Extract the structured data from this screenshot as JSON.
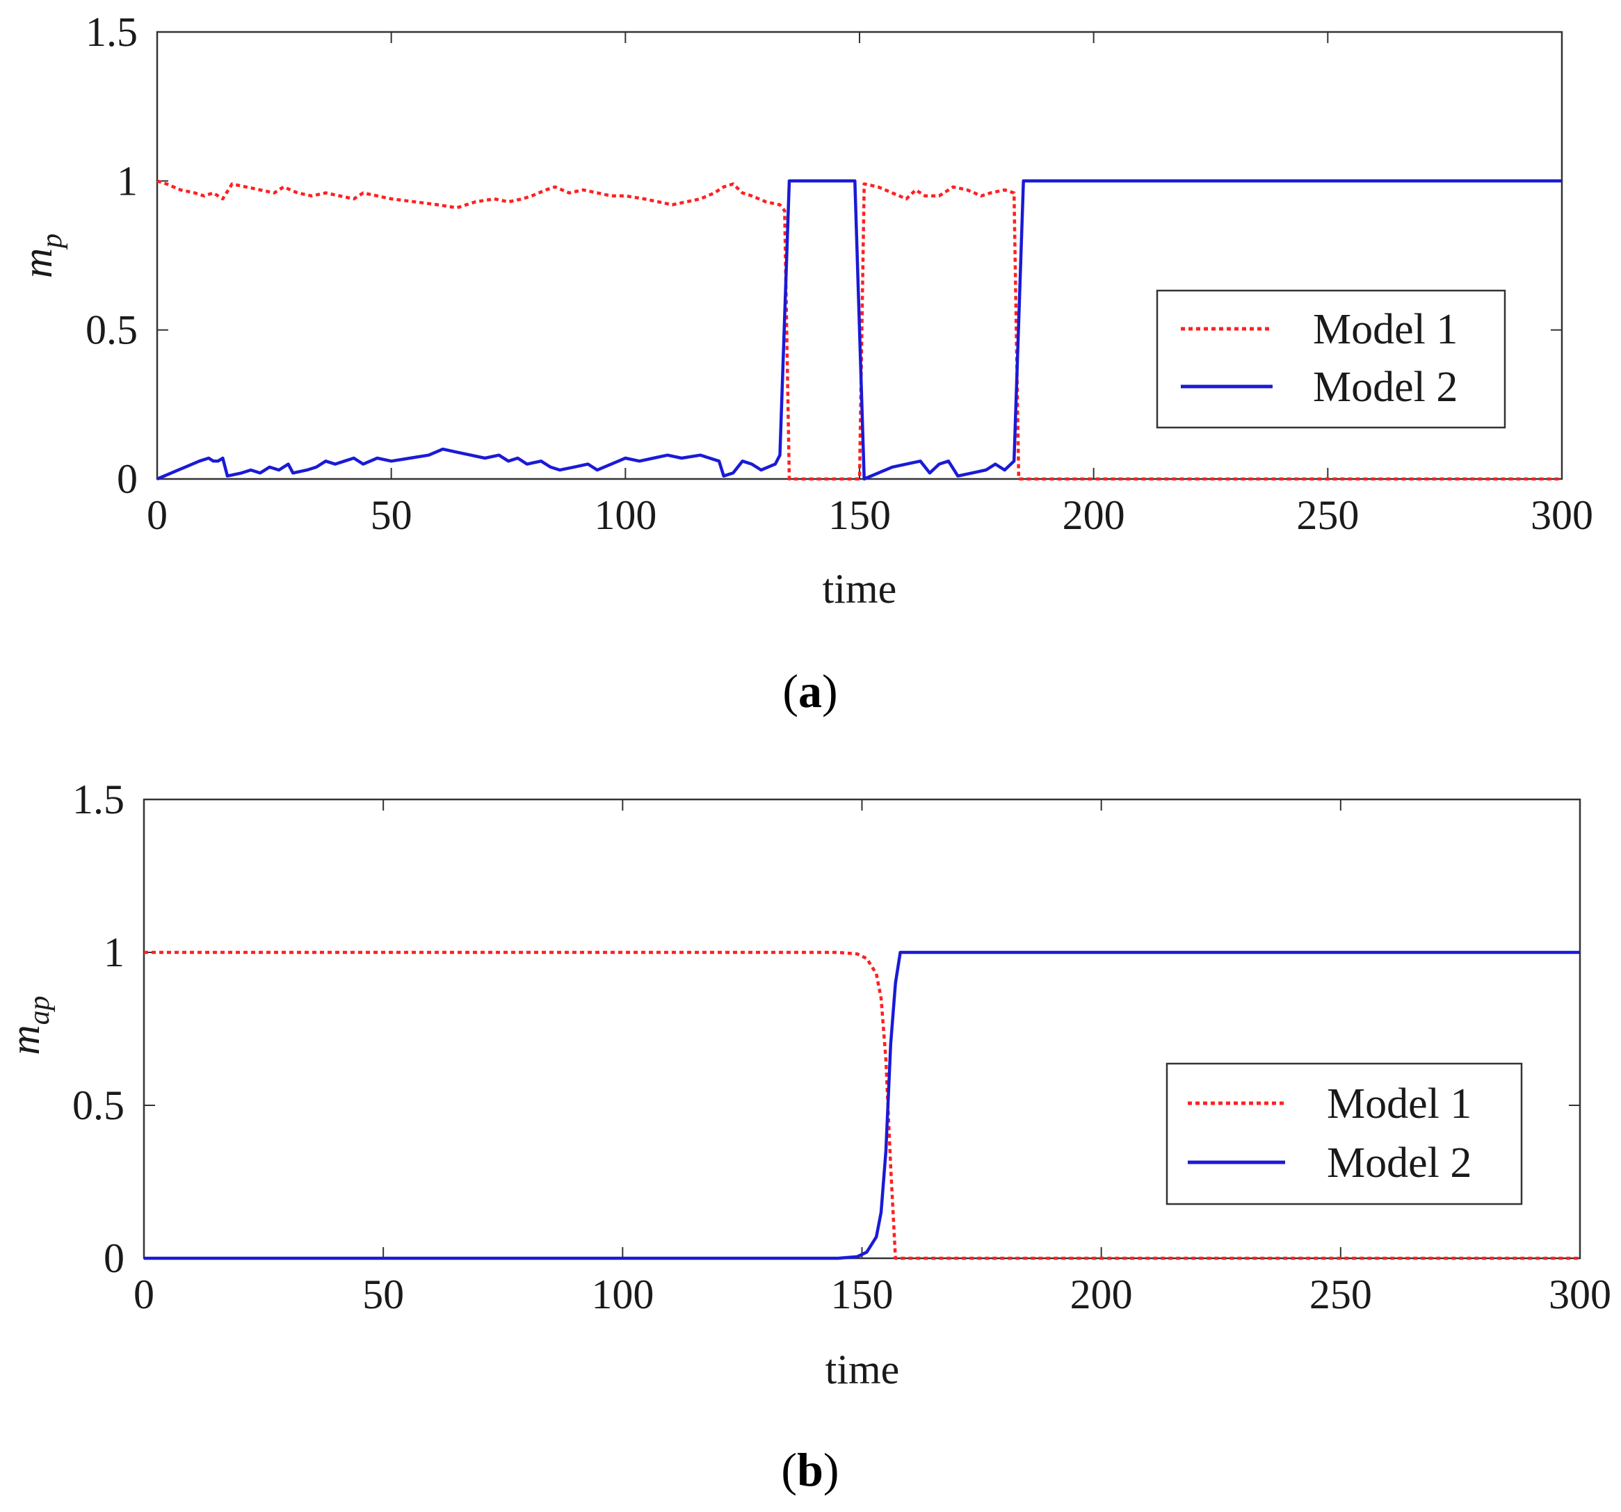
{
  "chart_data": [
    {
      "type": "line",
      "caption_letter": "a",
      "xlabel": "time",
      "ylabel_main": "m",
      "ylabel_sub": "p",
      "xlim": [
        0,
        300
      ],
      "ylim": [
        0,
        1.5
      ],
      "xticks": [
        "0",
        "50",
        "100",
        "150",
        "200",
        "250",
        "300"
      ],
      "yticks": [
        "0",
        "0.5",
        "1",
        "1.5"
      ],
      "legend_position": "center-right",
      "series": [
        {
          "name": "Model 1",
          "color": "#ff2020",
          "style": "dotted",
          "points": [
            [
              0,
              1.0
            ],
            [
              2,
              0.99
            ],
            [
              5,
              0.97
            ],
            [
              8,
              0.96
            ],
            [
              10,
              0.95
            ],
            [
              12,
              0.96
            ],
            [
              14,
              0.94
            ],
            [
              16,
              0.99
            ],
            [
              19,
              0.98
            ],
            [
              22,
              0.97
            ],
            [
              25,
              0.96
            ],
            [
              27,
              0.98
            ],
            [
              30,
              0.96
            ],
            [
              33,
              0.95
            ],
            [
              36,
              0.96
            ],
            [
              39,
              0.95
            ],
            [
              42,
              0.94
            ],
            [
              44,
              0.96
            ],
            [
              47,
              0.95
            ],
            [
              50,
              0.94
            ],
            [
              55,
              0.93
            ],
            [
              60,
              0.92
            ],
            [
              64,
              0.91
            ],
            [
              68,
              0.93
            ],
            [
              72,
              0.94
            ],
            [
              75,
              0.93
            ],
            [
              78,
              0.94
            ],
            [
              80,
              0.95
            ],
            [
              83,
              0.97
            ],
            [
              85,
              0.98
            ],
            [
              88,
              0.96
            ],
            [
              91,
              0.97
            ],
            [
              94,
              0.96
            ],
            [
              97,
              0.95
            ],
            [
              100,
              0.95
            ],
            [
              104,
              0.94
            ],
            [
              107,
              0.93
            ],
            [
              110,
              0.92
            ],
            [
              113,
              0.93
            ],
            [
              116,
              0.94
            ],
            [
              119,
              0.96
            ],
            [
              121,
              0.98
            ],
            [
              123,
              0.99
            ],
            [
              125,
              0.96
            ],
            [
              127,
              0.95
            ],
            [
              130,
              0.93
            ],
            [
              133,
              0.92
            ],
            [
              134,
              0.9
            ],
            [
              135,
              0.0
            ],
            [
              150,
              0.0
            ],
            [
              151,
              0.99
            ],
            [
              154,
              0.98
            ],
            [
              157,
              0.96
            ],
            [
              160,
              0.94
            ],
            [
              162,
              0.97
            ],
            [
              164,
              0.95
            ],
            [
              167,
              0.95
            ],
            [
              170,
              0.98
            ],
            [
              173,
              0.97
            ],
            [
              176,
              0.95
            ],
            [
              178,
              0.96
            ],
            [
              181,
              0.97
            ],
            [
              183,
              0.96
            ],
            [
              184,
              0.0
            ],
            [
              300,
              0.0
            ]
          ]
        },
        {
          "name": "Model 2",
          "color": "#1a1ad6",
          "style": "solid",
          "points": [
            [
              0,
              0.0
            ],
            [
              3,
              0.02
            ],
            [
              6,
              0.04
            ],
            [
              9,
              0.06
            ],
            [
              11,
              0.07
            ],
            [
              12,
              0.06
            ],
            [
              13,
              0.06
            ],
            [
              14,
              0.07
            ],
            [
              15,
              0.01
            ],
            [
              18,
              0.02
            ],
            [
              20,
              0.03
            ],
            [
              22,
              0.02
            ],
            [
              24,
              0.04
            ],
            [
              26,
              0.03
            ],
            [
              28,
              0.05
            ],
            [
              29,
              0.02
            ],
            [
              32,
              0.03
            ],
            [
              34,
              0.04
            ],
            [
              36,
              0.06
            ],
            [
              38,
              0.05
            ],
            [
              40,
              0.06
            ],
            [
              42,
              0.07
            ],
            [
              44,
              0.05
            ],
            [
              47,
              0.07
            ],
            [
              50,
              0.06
            ],
            [
              54,
              0.07
            ],
            [
              58,
              0.08
            ],
            [
              61,
              0.1
            ],
            [
              64,
              0.09
            ],
            [
              67,
              0.08
            ],
            [
              70,
              0.07
            ],
            [
              73,
              0.08
            ],
            [
              75,
              0.06
            ],
            [
              77,
              0.07
            ],
            [
              79,
              0.05
            ],
            [
              82,
              0.06
            ],
            [
              84,
              0.04
            ],
            [
              86,
              0.03
            ],
            [
              89,
              0.04
            ],
            [
              92,
              0.05
            ],
            [
              94,
              0.03
            ],
            [
              97,
              0.05
            ],
            [
              100,
              0.07
            ],
            [
              103,
              0.06
            ],
            [
              106,
              0.07
            ],
            [
              109,
              0.08
            ],
            [
              112,
              0.07
            ],
            [
              116,
              0.08
            ],
            [
              118,
              0.07
            ],
            [
              120,
              0.06
            ],
            [
              121,
              0.01
            ],
            [
              123,
              0.02
            ],
            [
              125,
              0.06
            ],
            [
              127,
              0.05
            ],
            [
              129,
              0.03
            ],
            [
              132,
              0.05
            ],
            [
              133,
              0.08
            ],
            [
              135,
              1.0
            ],
            [
              149,
              1.0
            ],
            [
              151,
              0.0
            ],
            [
              154,
              0.02
            ],
            [
              157,
              0.04
            ],
            [
              160,
              0.05
            ],
            [
              163,
              0.06
            ],
            [
              165,
              0.02
            ],
            [
              167,
              0.05
            ],
            [
              169,
              0.06
            ],
            [
              171,
              0.01
            ],
            [
              174,
              0.02
            ],
            [
              177,
              0.03
            ],
            [
              179,
              0.05
            ],
            [
              181,
              0.03
            ],
            [
              183,
              0.06
            ],
            [
              185,
              1.0
            ],
            [
              300,
              1.0
            ]
          ]
        }
      ]
    },
    {
      "type": "line",
      "caption_letter": "b",
      "xlabel": "time",
      "ylabel_main": "m",
      "ylabel_sub": "ap",
      "xlim": [
        0,
        300
      ],
      "ylim": [
        0,
        1.5
      ],
      "xticks": [
        "0",
        "50",
        "100",
        "150",
        "200",
        "250",
        "300"
      ],
      "yticks": [
        "0",
        "0.5",
        "1",
        "1.5"
      ],
      "legend_position": "center-right",
      "series": [
        {
          "name": "Model 1",
          "color": "#ff2020",
          "style": "dotted",
          "points": [
            [
              0,
              1.0
            ],
            [
              145,
              1.0
            ],
            [
              149,
              0.995
            ],
            [
              151,
              0.98
            ],
            [
              153,
              0.93
            ],
            [
              154,
              0.85
            ],
            [
              155,
              0.65
            ],
            [
              156,
              0.3
            ],
            [
              157,
              0.0
            ],
            [
              300,
              0.0
            ]
          ]
        },
        {
          "name": "Model 2",
          "color": "#1a1ad6",
          "style": "solid",
          "points": [
            [
              0,
              0.0
            ],
            [
              145,
              0.0
            ],
            [
              149,
              0.005
            ],
            [
              151,
              0.02
            ],
            [
              153,
              0.07
            ],
            [
              154,
              0.15
            ],
            [
              155,
              0.35
            ],
            [
              156,
              0.7
            ],
            [
              157,
              0.9
            ],
            [
              158,
              1.0
            ],
            [
              300,
              1.0
            ]
          ]
        }
      ]
    }
  ]
}
